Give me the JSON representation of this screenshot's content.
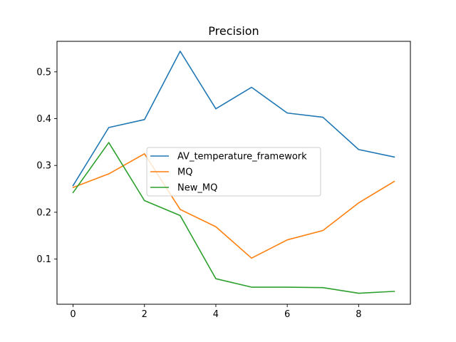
{
  "chart_data": {
    "type": "line",
    "title": "Precision",
    "xlabel": "",
    "ylabel": "",
    "x": [
      0,
      1,
      2,
      3,
      4,
      5,
      6,
      7,
      8,
      9
    ],
    "xlim": [
      -0.45,
      9.45
    ],
    "ylim": [
      0.0035,
      0.5652
    ],
    "xticks": [
      0,
      2,
      4,
      6,
      8
    ],
    "yticks": [
      0.1,
      0.2,
      0.3,
      0.4,
      0.5
    ],
    "grid": false,
    "legend_position": "center",
    "series": [
      {
        "name": "AV_temperature_framework",
        "color": "#1f77b4",
        "values": [
          0.257,
          0.381,
          0.398,
          0.544,
          0.421,
          0.467,
          0.412,
          0.403,
          0.334,
          0.318
        ]
      },
      {
        "name": "MQ",
        "color": "#ff7f0e",
        "values": [
          0.253,
          0.282,
          0.325,
          0.206,
          0.169,
          0.102,
          0.141,
          0.161,
          0.22,
          0.266
        ]
      },
      {
        "name": "New_MQ",
        "color": "#2ca02c",
        "values": [
          0.242,
          0.349,
          0.225,
          0.193,
          0.058,
          0.04,
          0.04,
          0.039,
          0.027,
          0.031
        ]
      }
    ]
  }
}
